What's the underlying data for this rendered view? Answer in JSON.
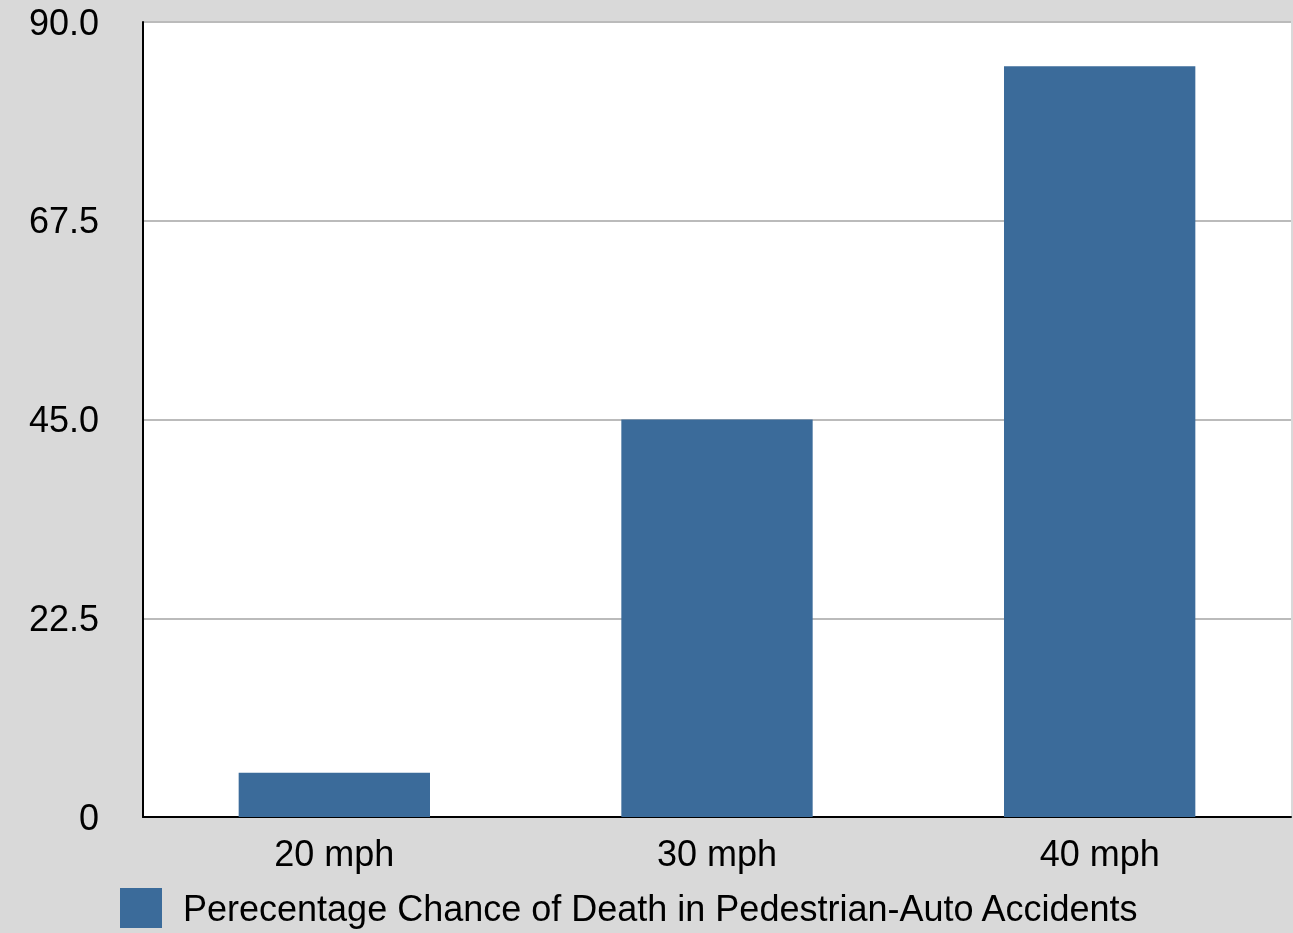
{
  "chart_data": {
    "type": "bar",
    "categories": [
      "20 mph",
      "30 mph",
      "40 mph"
    ],
    "series": [
      {
        "name": "Perecentage Chance of Death in Pedestrian-Auto Accidents",
        "color": "#3b6b9a",
        "values": [
          5,
          45,
          85
        ]
      }
    ],
    "ylim": [
      0,
      90
    ],
    "yticks": [
      0,
      22.5,
      {
        "value": 45,
        "label": "45.0"
      },
      67.5,
      {
        "value": 90,
        "label": "90.0"
      }
    ],
    "grid": "y",
    "legend": "bottom"
  }
}
